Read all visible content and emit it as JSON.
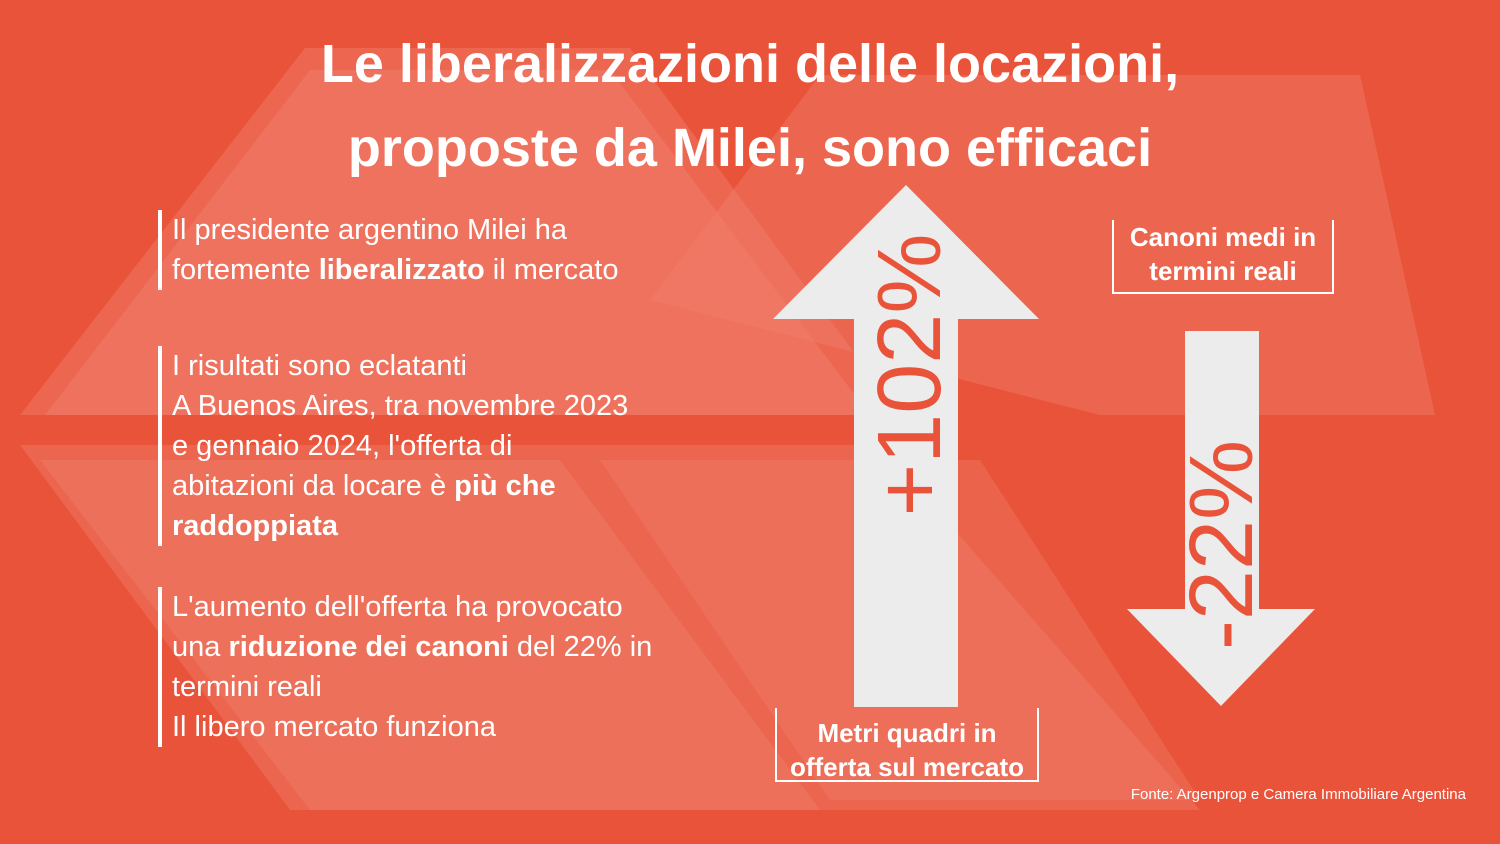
{
  "title": {
    "line1": "Le liberalizzazioni delle locazioni,",
    "line2": "proposte da Milei, sono efficaci"
  },
  "block1": {
    "line1": "Il presidente argentino Milei ha",
    "line2_pre": "fortemente ",
    "line2_bold": "liberalizzato",
    "line2_post": " il mercato"
  },
  "block2": {
    "line1": "I risultati sono eclatanti",
    "line2": "A Buenos Aires, tra novembre 2023",
    "line3": "e gennaio 2024, l'offerta di",
    "line4_pre": "abitazioni da locare è ",
    "line4_bold": "più che",
    "line5_bold": "raddoppiata"
  },
  "block3": {
    "line1": "L'aumento dell'offerta ha provocato",
    "line2_pre": "una ",
    "line2_bold": "riduzione dei canoni",
    "line2_post": " del 22% in",
    "line3": "termini reali",
    "line4": "Il libero mercato funziona"
  },
  "up_arrow": {
    "value": "+102%",
    "label_line1": "Metri quadri in",
    "label_line2": "offerta sul mercato"
  },
  "down_arrow": {
    "value": "-22%",
    "label_line1": "Canoni medi in",
    "label_line2": "termini reali"
  },
  "source": "Fonte: Argenprop e Camera Immobiliare Argentina",
  "colors": {
    "background": "#E9533A",
    "arrow": "#ECECEC",
    "text": "#FFFFFF"
  }
}
